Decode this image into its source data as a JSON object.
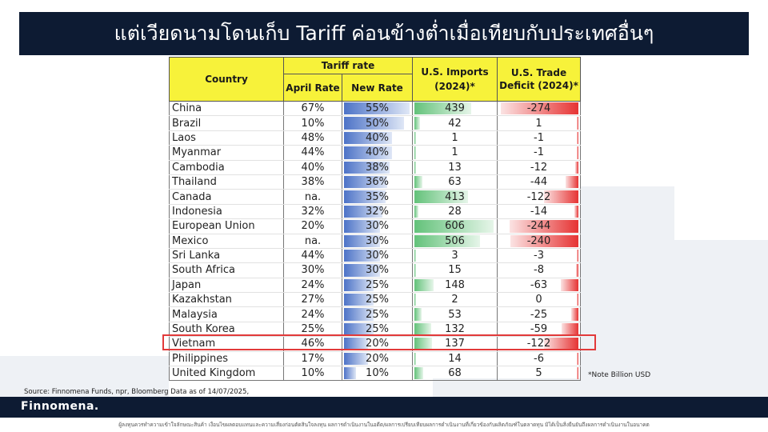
{
  "title": "แต่เวียดนามโดนเก็บ Tariff ค่อนข้างต่ำเมื่อเทียบกับประเทศอื่นๆ",
  "table": {
    "headers": {
      "country": "Country",
      "tariff_rate": "Tariff rate",
      "april_rate": "April Rate",
      "new_rate": "New Rate",
      "imports": "U.S. Imports (2024)*",
      "deficit": "U.S. Trade Deficit (2024)*"
    },
    "rows": [
      {
        "country": "China",
        "april": "67%",
        "new": "55%",
        "imports": "439",
        "deficit": "-274",
        "new_val": 55,
        "imports_val": 439,
        "deficit_val": -274
      },
      {
        "country": "Brazil",
        "april": "10%",
        "new": "50%",
        "imports": "42",
        "deficit": "1",
        "new_val": 50,
        "imports_val": 42,
        "deficit_val": 1
      },
      {
        "country": "Laos",
        "april": "48%",
        "new": "40%",
        "imports": "1",
        "deficit": "-1",
        "new_val": 40,
        "imports_val": 1,
        "deficit_val": -1
      },
      {
        "country": "Myanmar",
        "april": "44%",
        "new": "40%",
        "imports": "1",
        "deficit": "-1",
        "new_val": 40,
        "imports_val": 1,
        "deficit_val": -1
      },
      {
        "country": "Cambodia",
        "april": "40%",
        "new": "38%",
        "imports": "13",
        "deficit": "-12",
        "new_val": 38,
        "imports_val": 13,
        "deficit_val": -12
      },
      {
        "country": "Thailand",
        "april": "38%",
        "new": "36%",
        "imports": "63",
        "deficit": "-44",
        "new_val": 36,
        "imports_val": 63,
        "deficit_val": -44
      },
      {
        "country": "Canada",
        "april": "na.",
        "new": "35%",
        "imports": "413",
        "deficit": "-122",
        "new_val": 35,
        "imports_val": 413,
        "deficit_val": -122
      },
      {
        "country": "Indonesia",
        "april": "32%",
        "new": "32%",
        "imports": "28",
        "deficit": "-14",
        "new_val": 32,
        "imports_val": 28,
        "deficit_val": -14
      },
      {
        "country": "European Union",
        "april": "20%",
        "new": "30%",
        "imports": "606",
        "deficit": "-244",
        "new_val": 30,
        "imports_val": 606,
        "deficit_val": -244
      },
      {
        "country": "Mexico",
        "april": "na.",
        "new": "30%",
        "imports": "506",
        "deficit": "-240",
        "new_val": 30,
        "imports_val": 506,
        "deficit_val": -240
      },
      {
        "country": "Sri Lanka",
        "april": "44%",
        "new": "30%",
        "imports": "3",
        "deficit": "-3",
        "new_val": 30,
        "imports_val": 3,
        "deficit_val": -3
      },
      {
        "country": "South Africa",
        "april": "30%",
        "new": "30%",
        "imports": "15",
        "deficit": "-8",
        "new_val": 30,
        "imports_val": 15,
        "deficit_val": -8
      },
      {
        "country": "Japan",
        "april": "24%",
        "new": "25%",
        "imports": "148",
        "deficit": "-63",
        "new_val": 25,
        "imports_val": 148,
        "deficit_val": -63
      },
      {
        "country": "Kazakhstan",
        "april": "27%",
        "new": "25%",
        "imports": "2",
        "deficit": "0",
        "new_val": 25,
        "imports_val": 2,
        "deficit_val": 0
      },
      {
        "country": "Malaysia",
        "april": "24%",
        "new": "25%",
        "imports": "53",
        "deficit": "-25",
        "new_val": 25,
        "imports_val": 53,
        "deficit_val": -25
      },
      {
        "country": "South Korea",
        "april": "25%",
        "new": "25%",
        "imports": "132",
        "deficit": "-59",
        "new_val": 25,
        "imports_val": 132,
        "deficit_val": -59
      },
      {
        "country": "Vietnam",
        "april": "46%",
        "new": "20%",
        "imports": "137",
        "deficit": "-122",
        "new_val": 20,
        "imports_val": 137,
        "deficit_val": -122
      },
      {
        "country": "Philippines",
        "april": "17%",
        "new": "20%",
        "imports": "14",
        "deficit": "-6",
        "new_val": 20,
        "imports_val": 14,
        "deficit_val": -6
      },
      {
        "country": "United Kingdom",
        "april": "10%",
        "new": "10%",
        "imports": "68",
        "deficit": "5",
        "new_val": 10,
        "imports_val": 68,
        "deficit_val": 5
      }
    ]
  },
  "note": "*Note Billion USD",
  "source": "Source: Finnomena Funds, npr, Bloomberg Data as of 14/07/2025,",
  "brand": "Finnomena.",
  "disclaimer": "ผู้ลงทุนควรทำความเข้าใจลักษณะสินค้า เงื่อนไขผลตอบแทนและความเสี่ยงก่อนตัดสินใจลงทุน ผลการดำเนินงานในอดีต/ผลการเปรียบเทียบผลการดำเนินงานที่เกี่ยวข้องกับผลิตภัณฑ์ในตลาดทุน มิได้เป็นสิ่งยืนยันถึงผลการดำเนินงานในอนาคต",
  "colors": {
    "navy": "#0d1b33",
    "header_yellow": "#f7f23a",
    "bar_blue": "#4d73c7",
    "bar_green": "#63c27a",
    "bar_red": "#e63333",
    "highlight": "#e23a3a"
  }
}
